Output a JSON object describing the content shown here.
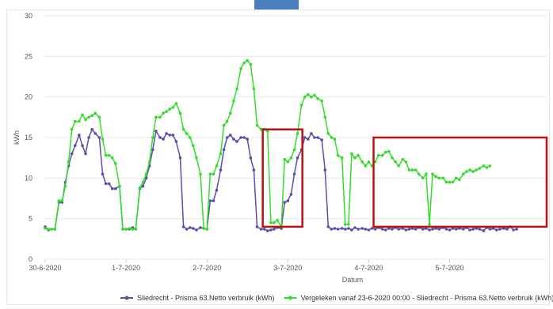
{
  "chart_data": {
    "type": "line",
    "xlabel": "Datum",
    "ylabel": "kWh",
    "ylim": [
      0,
      30
    ],
    "yticks": [
      0,
      5,
      10,
      15,
      20,
      25,
      30
    ],
    "xlim": [
      0,
      6.2
    ],
    "xticks": [
      {
        "label": "30-6-2020",
        "x": 0
      },
      {
        "label": "1-7-2020",
        "x": 1
      },
      {
        "label": "2-7-2020",
        "x": 2
      },
      {
        "label": "3-7-2020",
        "x": 3
      },
      {
        "label": "4-7-2020",
        "x": 4
      },
      {
        "label": "5-7-2020",
        "x": 5
      }
    ],
    "grid": true,
    "legend": "bottom",
    "series": [
      {
        "name": "Sliedrecht - Prisma 63.Netto verbruik (kWh)",
        "color": "#5b4ea8",
        "points": [
          [
            0.0,
            4.0
          ],
          [
            0.04,
            3.6
          ],
          [
            0.08,
            3.7
          ],
          [
            0.12,
            3.7
          ],
          [
            0.17,
            7.0
          ],
          [
            0.21,
            7.0
          ],
          [
            0.25,
            9.5
          ],
          [
            0.29,
            11.5
          ],
          [
            0.33,
            13.0
          ],
          [
            0.37,
            14.0
          ],
          [
            0.42,
            15.3
          ],
          [
            0.46,
            14.0
          ],
          [
            0.5,
            13.0
          ],
          [
            0.54,
            15.0
          ],
          [
            0.58,
            16.0
          ],
          [
            0.62,
            15.5
          ],
          [
            0.67,
            15.0
          ],
          [
            0.71,
            10.5
          ],
          [
            0.75,
            9.3
          ],
          [
            0.79,
            9.3
          ],
          [
            0.83,
            8.7
          ],
          [
            0.87,
            8.7
          ],
          [
            0.92,
            9.0
          ],
          [
            0.96,
            3.7
          ],
          [
            1.0,
            3.7
          ],
          [
            1.04,
            3.7
          ],
          [
            1.08,
            3.9
          ],
          [
            1.12,
            3.7
          ],
          [
            1.17,
            8.7
          ],
          [
            1.21,
            9.0
          ],
          [
            1.25,
            10.0
          ],
          [
            1.29,
            11.5
          ],
          [
            1.33,
            13.5
          ],
          [
            1.37,
            15.8
          ],
          [
            1.42,
            15.0
          ],
          [
            1.46,
            14.8
          ],
          [
            1.5,
            15.5
          ],
          [
            1.54,
            15.3
          ],
          [
            1.58,
            15.3
          ],
          [
            1.62,
            14.5
          ],
          [
            1.67,
            12.5
          ],
          [
            1.71,
            4.0
          ],
          [
            1.75,
            3.7
          ],
          [
            1.79,
            3.9
          ],
          [
            1.83,
            3.8
          ],
          [
            1.87,
            3.6
          ],
          [
            1.92,
            3.9
          ],
          [
            1.96,
            3.8
          ],
          [
            2.0,
            3.7
          ],
          [
            2.04,
            7.2
          ],
          [
            2.08,
            7.2
          ],
          [
            2.12,
            8.5
          ],
          [
            2.17,
            11.0
          ],
          [
            2.21,
            13.5
          ],
          [
            2.25,
            15.0
          ],
          [
            2.29,
            15.3
          ],
          [
            2.33,
            14.8
          ],
          [
            2.37,
            14.5
          ],
          [
            2.42,
            15.0
          ],
          [
            2.46,
            15.0
          ],
          [
            2.5,
            14.8
          ],
          [
            2.54,
            12.5
          ],
          [
            2.58,
            11.0
          ],
          [
            2.62,
            4.0
          ],
          [
            2.67,
            3.7
          ],
          [
            2.71,
            3.7
          ],
          [
            2.75,
            3.5
          ],
          [
            2.79,
            3.6
          ],
          [
            2.83,
            3.7
          ],
          [
            2.87,
            3.9
          ],
          [
            2.92,
            3.8
          ],
          [
            2.96,
            7.0
          ],
          [
            3.0,
            7.2
          ],
          [
            3.04,
            8.0
          ],
          [
            3.08,
            10.5
          ],
          [
            3.12,
            12.5
          ],
          [
            3.17,
            13.5
          ],
          [
            3.21,
            15.0
          ],
          [
            3.25,
            14.8
          ],
          [
            3.29,
            15.5
          ],
          [
            3.33,
            15.0
          ],
          [
            3.37,
            15.0
          ],
          [
            3.42,
            14.7
          ],
          [
            3.46,
            11.0
          ],
          [
            3.5,
            4.0
          ],
          [
            3.54,
            3.7
          ],
          [
            3.58,
            3.8
          ],
          [
            3.62,
            3.7
          ],
          [
            3.67,
            3.8
          ],
          [
            3.71,
            3.7
          ],
          [
            3.75,
            3.8
          ],
          [
            3.79,
            3.6
          ],
          [
            3.83,
            3.9
          ],
          [
            3.87,
            3.7
          ],
          [
            3.92,
            3.8
          ],
          [
            3.96,
            3.7
          ],
          [
            4.0,
            3.6
          ],
          [
            4.04,
            3.8
          ],
          [
            4.08,
            3.7
          ],
          [
            4.12,
            3.9
          ],
          [
            4.17,
            3.7
          ],
          [
            4.21,
            3.6
          ],
          [
            4.25,
            3.8
          ],
          [
            4.29,
            3.7
          ],
          [
            4.33,
            3.9
          ],
          [
            4.37,
            3.7
          ],
          [
            4.42,
            3.8
          ],
          [
            4.46,
            3.6
          ],
          [
            4.5,
            3.7
          ],
          [
            4.54,
            3.8
          ],
          [
            4.58,
            3.7
          ],
          [
            4.62,
            3.9
          ],
          [
            4.67,
            3.7
          ],
          [
            4.71,
            3.8
          ],
          [
            4.75,
            3.6
          ],
          [
            4.79,
            3.7
          ],
          [
            4.83,
            3.8
          ],
          [
            4.87,
            3.7
          ],
          [
            4.92,
            3.9
          ],
          [
            4.96,
            3.7
          ],
          [
            5.0,
            3.6
          ],
          [
            5.04,
            3.8
          ],
          [
            5.08,
            3.7
          ],
          [
            5.12,
            3.8
          ],
          [
            5.17,
            3.7
          ],
          [
            5.21,
            3.9
          ],
          [
            5.25,
            3.6
          ],
          [
            5.29,
            3.7
          ],
          [
            5.33,
            3.8
          ],
          [
            5.37,
            3.7
          ],
          [
            5.42,
            3.5
          ],
          [
            5.46,
            3.9
          ],
          [
            5.5,
            3.7
          ],
          [
            5.54,
            3.8
          ],
          [
            5.58,
            3.6
          ],
          [
            5.62,
            3.7
          ],
          [
            5.67,
            3.8
          ],
          [
            5.71,
            3.7
          ],
          [
            5.75,
            4.0
          ],
          [
            5.79,
            3.6
          ],
          [
            5.83,
            3.7
          ]
        ]
      },
      {
        "name": "Vergeleken vanaf 23-6-2020 00:00 - Sliedrecht - Prisma 63.Netto verbruik (kWh)",
        "color": "#33dd2a",
        "points": [
          [
            0.0,
            3.8
          ],
          [
            0.04,
            3.7
          ],
          [
            0.08,
            3.7
          ],
          [
            0.12,
            3.7
          ],
          [
            0.17,
            7.2
          ],
          [
            0.21,
            7.2
          ],
          [
            0.25,
            9.0
          ],
          [
            0.29,
            12.0
          ],
          [
            0.33,
            16.0
          ],
          [
            0.37,
            17.0
          ],
          [
            0.42,
            17.0
          ],
          [
            0.46,
            17.8
          ],
          [
            0.5,
            17.2
          ],
          [
            0.54,
            17.5
          ],
          [
            0.58,
            17.7
          ],
          [
            0.62,
            18.0
          ],
          [
            0.67,
            17.5
          ],
          [
            0.71,
            14.8
          ],
          [
            0.75,
            12.8
          ],
          [
            0.79,
            12.8
          ],
          [
            0.83,
            12.5
          ],
          [
            0.87,
            11.8
          ],
          [
            0.92,
            9.0
          ],
          [
            0.96,
            3.7
          ],
          [
            1.0,
            3.7
          ],
          [
            1.04,
            3.8
          ],
          [
            1.08,
            3.7
          ],
          [
            1.12,
            3.7
          ],
          [
            1.17,
            8.8
          ],
          [
            1.21,
            9.5
          ],
          [
            1.25,
            10.5
          ],
          [
            1.29,
            12.0
          ],
          [
            1.33,
            15.0
          ],
          [
            1.37,
            17.5
          ],
          [
            1.42,
            17.5
          ],
          [
            1.46,
            18.0
          ],
          [
            1.5,
            18.2
          ],
          [
            1.54,
            18.5
          ],
          [
            1.58,
            18.7
          ],
          [
            1.62,
            19.2
          ],
          [
            1.67,
            18.0
          ],
          [
            1.71,
            16.0
          ],
          [
            1.75,
            15.5
          ],
          [
            1.79,
            15.0
          ],
          [
            1.83,
            14.0
          ],
          [
            1.87,
            12.5
          ],
          [
            1.92,
            10.5
          ],
          [
            1.96,
            3.8
          ],
          [
            2.0,
            3.7
          ],
          [
            2.04,
            10.5
          ],
          [
            2.08,
            10.5
          ],
          [
            2.12,
            11.5
          ],
          [
            2.17,
            13.0
          ],
          [
            2.21,
            16.5
          ],
          [
            2.25,
            17.0
          ],
          [
            2.29,
            18.0
          ],
          [
            2.33,
            19.5
          ],
          [
            2.37,
            21.0
          ],
          [
            2.42,
            23.5
          ],
          [
            2.46,
            24.2
          ],
          [
            2.5,
            24.5
          ],
          [
            2.54,
            24.0
          ],
          [
            2.58,
            21.0
          ],
          [
            2.62,
            16.5
          ],
          [
            2.67,
            16.0
          ],
          [
            2.71,
            16.0
          ],
          [
            2.75,
            15.8
          ],
          [
            2.79,
            4.5
          ],
          [
            2.83,
            4.5
          ],
          [
            2.87,
            4.8
          ],
          [
            2.92,
            4.0
          ],
          [
            2.96,
            12.3
          ],
          [
            3.0,
            12.0
          ],
          [
            3.04,
            12.5
          ],
          [
            3.08,
            13.5
          ],
          [
            3.12,
            15.5
          ],
          [
            3.17,
            19.0
          ],
          [
            3.21,
            20.0
          ],
          [
            3.25,
            20.3
          ],
          [
            3.29,
            20.0
          ],
          [
            3.33,
            20.2
          ],
          [
            3.37,
            19.8
          ],
          [
            3.42,
            19.5
          ],
          [
            3.46,
            17.5
          ],
          [
            3.5,
            15.5
          ],
          [
            3.54,
            15.0
          ],
          [
            3.58,
            14.8
          ],
          [
            3.62,
            12.8
          ],
          [
            3.67,
            12.5
          ],
          [
            3.71,
            4.3
          ],
          [
            3.75,
            4.3
          ],
          [
            3.79,
            13.0
          ],
          [
            3.83,
            12.5
          ],
          [
            3.87,
            12.8
          ],
          [
            3.92,
            12.0
          ],
          [
            3.96,
            11.5
          ],
          [
            4.0,
            12.0
          ],
          [
            4.04,
            11.5
          ],
          [
            4.08,
            12.0
          ],
          [
            4.12,
            12.8
          ],
          [
            4.17,
            12.8
          ],
          [
            4.21,
            13.2
          ],
          [
            4.25,
            13.3
          ],
          [
            4.29,
            12.5
          ],
          [
            4.33,
            12.0
          ],
          [
            4.37,
            11.5
          ],
          [
            4.42,
            12.3
          ],
          [
            4.46,
            12.0
          ],
          [
            4.5,
            11.0
          ],
          [
            4.54,
            11.0
          ],
          [
            4.58,
            11.0
          ],
          [
            4.62,
            10.5
          ],
          [
            4.67,
            10.0
          ],
          [
            4.71,
            10.5
          ],
          [
            4.75,
            4.3
          ],
          [
            4.79,
            10.5
          ],
          [
            4.83,
            10.2
          ],
          [
            4.87,
            10.0
          ],
          [
            4.92,
            10.0
          ],
          [
            4.96,
            9.5
          ],
          [
            5.0,
            9.5
          ],
          [
            5.04,
            9.5
          ],
          [
            5.08,
            10.0
          ],
          [
            5.12,
            9.8
          ],
          [
            5.17,
            10.5
          ],
          [
            5.21,
            10.8
          ],
          [
            5.25,
            11.0
          ],
          [
            5.29,
            10.8
          ],
          [
            5.33,
            11.0
          ],
          [
            5.37,
            11.2
          ],
          [
            5.42,
            11.5
          ],
          [
            5.46,
            11.3
          ],
          [
            5.5,
            11.5
          ]
        ]
      }
    ],
    "annotations": [
      {
        "type": "box",
        "color": "#bb1111",
        "x": [
          2.69,
          3.18
        ],
        "y": [
          4.0,
          16.0
        ]
      },
      {
        "type": "box",
        "color": "#bb1111",
        "x": [
          4.06,
          6.2
        ],
        "y": [
          4.0,
          15.0
        ]
      }
    ]
  }
}
